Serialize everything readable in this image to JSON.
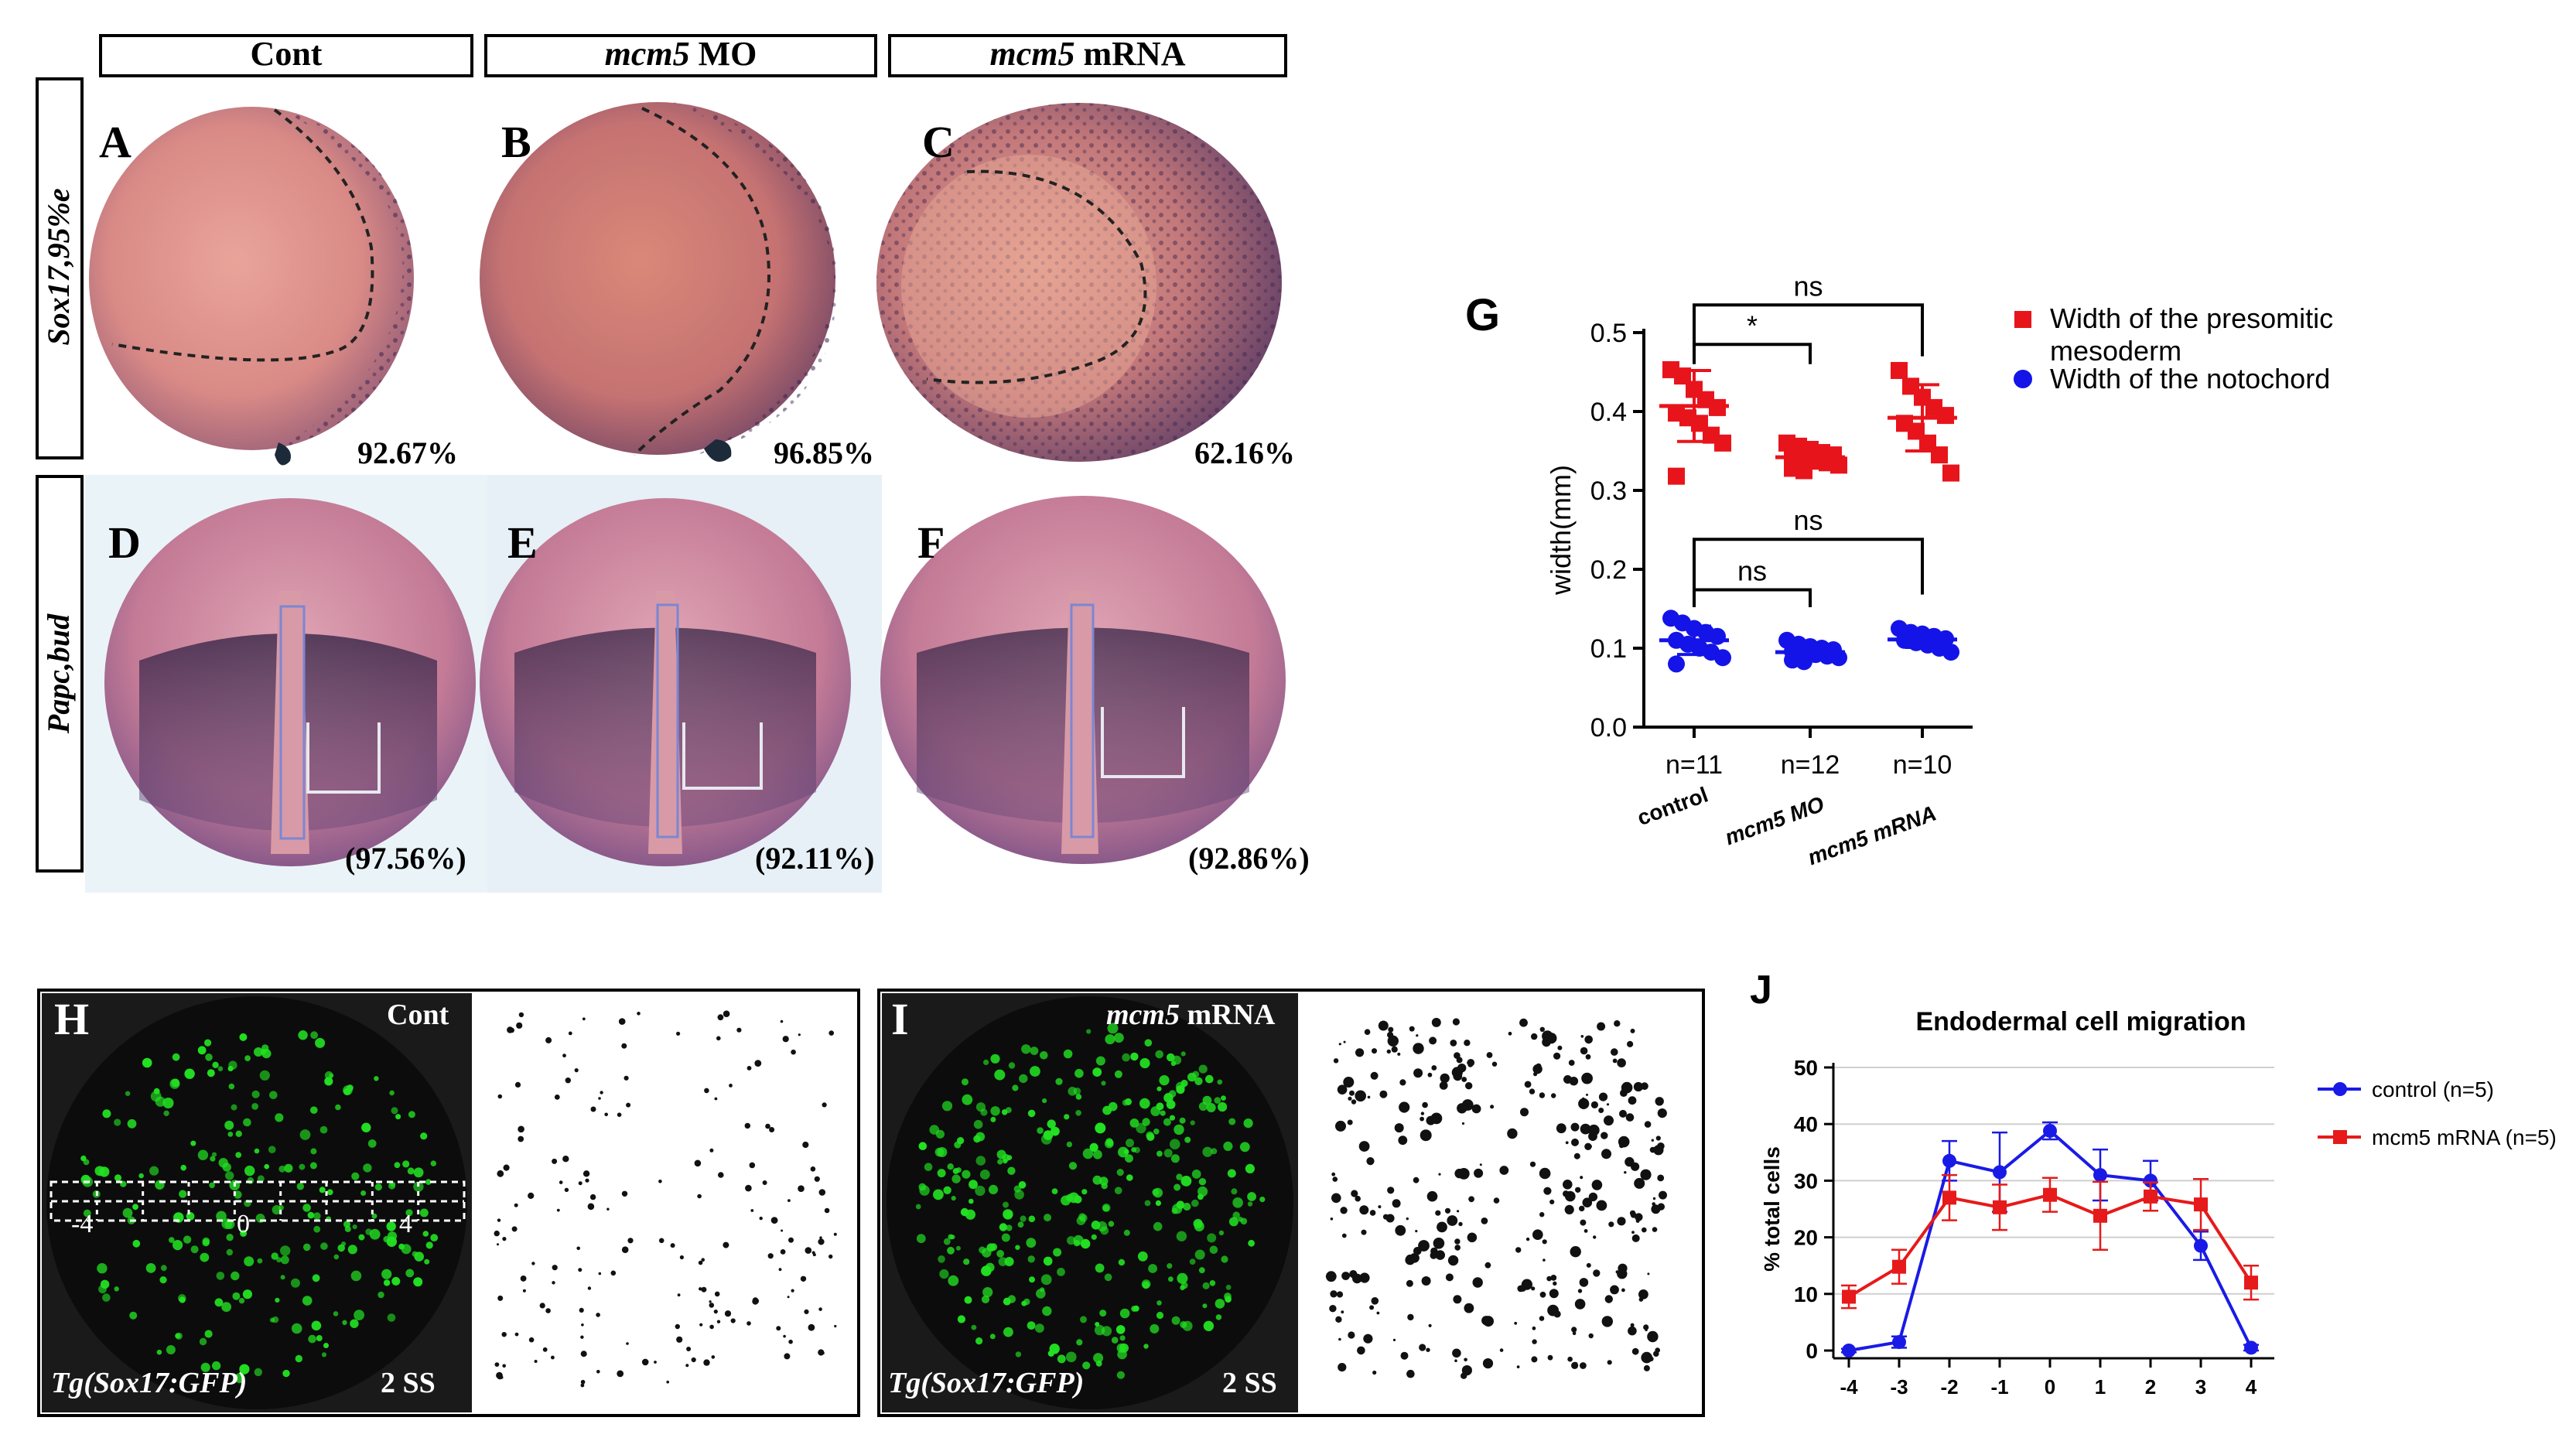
{
  "headers": {
    "cont": "Cont",
    "mo_gene": "mcm5",
    "mo_suffix": " MO",
    "mrna_gene": "mcm5",
    "mrna_suffix": " mRNA"
  },
  "row_labels": {
    "row1": "Sox17,95%e",
    "row2": "Papc,bud"
  },
  "panels": {
    "A": {
      "label": "A",
      "pct": "92.67%"
    },
    "B": {
      "label": "B",
      "pct": "96.85%"
    },
    "C": {
      "label": "C",
      "pct": "62.16%"
    },
    "D": {
      "label": "D",
      "pct": "(97.56%)"
    },
    "E": {
      "label": "E",
      "pct": "(92.11%)"
    },
    "F": {
      "label": "F",
      "pct": "(92.86%)"
    },
    "G": {
      "label": "G"
    },
    "H": {
      "label": "H",
      "top_right": "Cont",
      "bottom_left": "Tg(Sox17:GFP)",
      "bottom_right": "2 SS",
      "bin_left": "-4",
      "bin_mid": "0",
      "bin_right": "4"
    },
    "I": {
      "label": "I",
      "top_right_gene": "mcm5",
      "top_right_suffix": " mRNA",
      "bottom_left": "Tg(Sox17:GFP)",
      "bottom_right": "2 SS"
    },
    "J": {
      "label": "J"
    }
  },
  "chart_data": [
    {
      "type": "scatter",
      "panel": "G",
      "ylabel": "width(mm)",
      "ylim": [
        0.0,
        0.5
      ],
      "yticks": [
        "0.0",
        "0.1",
        "0.2",
        "0.3",
        "0.4",
        "0.5"
      ],
      "categories": [
        "control",
        "mcm5 MO",
        "mcm5 mRNA"
      ],
      "n_labels": [
        "n=11",
        "n=12",
        "n=10"
      ],
      "legend": [
        "Width of the presomitic mesoderm",
        "Width of the notochord"
      ],
      "legend_line1": "Width of the presomitic",
      "legend_line2": "mesoderm",
      "significance": [
        {
          "pair": [
            0,
            1
          ],
          "series": "presomitic",
          "label": "*"
        },
        {
          "pair": [
            0,
            2
          ],
          "series": "presomitic",
          "label": "ns"
        },
        {
          "pair": [
            0,
            1
          ],
          "series": "notochord",
          "label": "ns"
        },
        {
          "pair": [
            0,
            2
          ],
          "series": "notochord",
          "label": "ns"
        }
      ],
      "series": [
        {
          "name": "Width of the presomitic mesoderm",
          "color": "#e8141c",
          "marker": "square",
          "mean": [
            0.407,
            0.342,
            0.392
          ],
          "sd": [
            0.045,
            0.012,
            0.042
          ],
          "points": [
            [
              0.453,
              0.445,
              0.428,
              0.415,
              0.405,
              0.398,
              0.392,
              0.385,
              0.37,
              0.36,
              0.318
            ],
            [
              0.36,
              0.356,
              0.352,
              0.348,
              0.345,
              0.342,
              0.34,
              0.337,
              0.335,
              0.332,
              0.328,
              0.325
            ],
            [
              0.452,
              0.432,
              0.418,
              0.405,
              0.395,
              0.385,
              0.375,
              0.36,
              0.345,
              0.322
            ]
          ]
        },
        {
          "name": "Width of the notochord",
          "color": "#1414e8",
          "marker": "circle",
          "mean": [
            0.11,
            0.095,
            0.111
          ],
          "sd": [
            0.018,
            0.008,
            0.01
          ],
          "points": [
            [
              0.138,
              0.132,
              0.125,
              0.12,
              0.115,
              0.11,
              0.105,
              0.1,
              0.095,
              0.088,
              0.08
            ],
            [
              0.11,
              0.105,
              0.102,
              0.1,
              0.098,
              0.096,
              0.094,
              0.092,
              0.09,
              0.088,
              0.085,
              0.083
            ],
            [
              0.125,
              0.12,
              0.118,
              0.115,
              0.112,
              0.11,
              0.107,
              0.104,
              0.1,
              0.095
            ]
          ]
        }
      ]
    },
    {
      "type": "line",
      "panel": "J",
      "title": "Endodermal cell migration",
      "ylabel": "% total cells",
      "ylim": [
        0,
        50
      ],
      "yticks": [
        "0",
        "10",
        "20",
        "30",
        "40",
        "50"
      ],
      "x": [
        "-4",
        "-3",
        "-2",
        "-1",
        "0",
        "1",
        "2",
        "3",
        "4"
      ],
      "series": [
        {
          "name": "control (n=5)",
          "color": "#1a1ae6",
          "marker": "circle",
          "values": [
            0,
            1.5,
            33.5,
            31.5,
            38.8,
            31,
            30,
            18.5,
            0.5
          ],
          "errors": [
            0.3,
            1,
            3.5,
            7,
            1.5,
            4.5,
            3.5,
            2.5,
            0.5
          ]
        },
        {
          "name": "mcm5 mRNA (n=5)",
          "color": "#e61a1a",
          "marker": "square",
          "values": [
            9.5,
            14.8,
            27,
            25.3,
            27.5,
            23.8,
            27.2,
            25.8,
            12
          ],
          "errors": [
            2,
            3,
            4,
            4,
            3,
            6,
            2.5,
            4.5,
            3
          ]
        }
      ]
    }
  ]
}
